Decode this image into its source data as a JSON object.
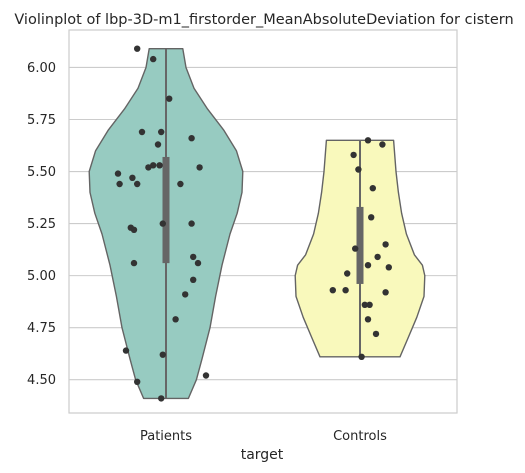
{
  "chart_data": {
    "type": "violin",
    "title": "Violinplot of lbp-3D-m1_firstorder_MeanAbsoluteDeviation for cistern",
    "xlabel": "target",
    "ylabel": "",
    "categories": [
      "Patients",
      "Controls"
    ],
    "ylim": [
      4.34,
      6.18
    ],
    "yticks": [
      4.5,
      4.75,
      5.0,
      5.25,
      5.5,
      5.75,
      6.0
    ],
    "ytick_labels": [
      "4.50",
      "4.75",
      "5.00",
      "5.25",
      "5.50",
      "5.75",
      "6.00"
    ],
    "grid": true,
    "colors": {
      "Patients": "#97cbc1",
      "Controls": "#f9f9bc",
      "violin_edge": "#646464",
      "box": "#666666",
      "points": "#333333",
      "grid": "#cccccc",
      "frame": "#cccccc"
    },
    "series": [
      {
        "name": "Patients",
        "range": [
          4.41,
          6.09
        ],
        "quartiles": [
          5.06,
          5.43,
          5.57
        ],
        "density": [
          [
            4.41,
            0.28
          ],
          [
            4.5,
            0.38
          ],
          [
            4.6,
            0.45
          ],
          [
            4.75,
            0.55
          ],
          [
            4.9,
            0.62
          ],
          [
            5.05,
            0.7
          ],
          [
            5.2,
            0.8
          ],
          [
            5.3,
            0.89
          ],
          [
            5.4,
            0.95
          ],
          [
            5.5,
            0.96
          ],
          [
            5.6,
            0.88
          ],
          [
            5.7,
            0.72
          ],
          [
            5.8,
            0.52
          ],
          [
            5.9,
            0.35
          ],
          [
            6.0,
            0.25
          ],
          [
            6.09,
            0.21
          ]
        ],
        "points": [
          {
            "x": -0.18,
            "y": 6.09
          },
          {
            "x": -0.08,
            "y": 6.04
          },
          {
            "x": 0.02,
            "y": 5.85
          },
          {
            "x": -0.15,
            "y": 5.69
          },
          {
            "x": -0.03,
            "y": 5.69
          },
          {
            "x": 0.16,
            "y": 5.66
          },
          {
            "x": -0.05,
            "y": 5.63
          },
          {
            "x": -0.08,
            "y": 5.53
          },
          {
            "x": -0.04,
            "y": 5.53
          },
          {
            "x": -0.11,
            "y": 5.52
          },
          {
            "x": 0.21,
            "y": 5.52
          },
          {
            "x": -0.3,
            "y": 5.49
          },
          {
            "x": -0.21,
            "y": 5.47
          },
          {
            "x": -0.29,
            "y": 5.44
          },
          {
            "x": -0.18,
            "y": 5.44
          },
          {
            "x": 0.09,
            "y": 5.44
          },
          {
            "x": -0.02,
            "y": 5.25
          },
          {
            "x": 0.16,
            "y": 5.25
          },
          {
            "x": -0.22,
            "y": 5.23
          },
          {
            "x": -0.2,
            "y": 5.22
          },
          {
            "x": 0.17,
            "y": 5.09
          },
          {
            "x": -0.2,
            "y": 5.06
          },
          {
            "x": 0.2,
            "y": 5.06
          },
          {
            "x": 0.17,
            "y": 4.98
          },
          {
            "x": 0.12,
            "y": 4.91
          },
          {
            "x": 0.06,
            "y": 4.79
          },
          {
            "x": -0.25,
            "y": 4.64
          },
          {
            "x": -0.02,
            "y": 4.62
          },
          {
            "x": 0.25,
            "y": 4.52
          },
          {
            "x": -0.18,
            "y": 4.49
          },
          {
            "x": -0.03,
            "y": 4.41
          }
        ]
      },
      {
        "name": "Controls",
        "range": [
          4.61,
          5.65
        ],
        "quartiles": [
          4.96,
          5.05,
          5.33
        ],
        "density": [
          [
            4.61,
            0.5
          ],
          [
            4.7,
            0.6
          ],
          [
            4.8,
            0.71
          ],
          [
            4.9,
            0.8
          ],
          [
            5.0,
            0.81
          ],
          [
            5.05,
            0.78
          ],
          [
            5.1,
            0.68
          ],
          [
            5.2,
            0.58
          ],
          [
            5.3,
            0.52
          ],
          [
            5.4,
            0.48
          ],
          [
            5.5,
            0.45
          ],
          [
            5.6,
            0.43
          ],
          [
            5.65,
            0.42
          ]
        ],
        "points": [
          {
            "x": 0.05,
            "y": 5.65
          },
          {
            "x": 0.14,
            "y": 5.63
          },
          {
            "x": -0.04,
            "y": 5.58
          },
          {
            "x": -0.01,
            "y": 5.51
          },
          {
            "x": 0.08,
            "y": 5.42
          },
          {
            "x": 0.07,
            "y": 5.28
          },
          {
            "x": 0.16,
            "y": 5.15
          },
          {
            "x": -0.03,
            "y": 5.13
          },
          {
            "x": 0.11,
            "y": 5.09
          },
          {
            "x": 0.05,
            "y": 5.05
          },
          {
            "x": 0.18,
            "y": 5.04
          },
          {
            "x": -0.08,
            "y": 5.01
          },
          {
            "x": -0.17,
            "y": 4.93
          },
          {
            "x": -0.09,
            "y": 4.93
          },
          {
            "x": 0.16,
            "y": 4.92
          },
          {
            "x": 0.03,
            "y": 4.86
          },
          {
            "x": 0.06,
            "y": 4.86
          },
          {
            "x": 0.05,
            "y": 4.79
          },
          {
            "x": 0.1,
            "y": 4.72
          },
          {
            "x": 0.01,
            "y": 4.61
          }
        ]
      }
    ]
  }
}
